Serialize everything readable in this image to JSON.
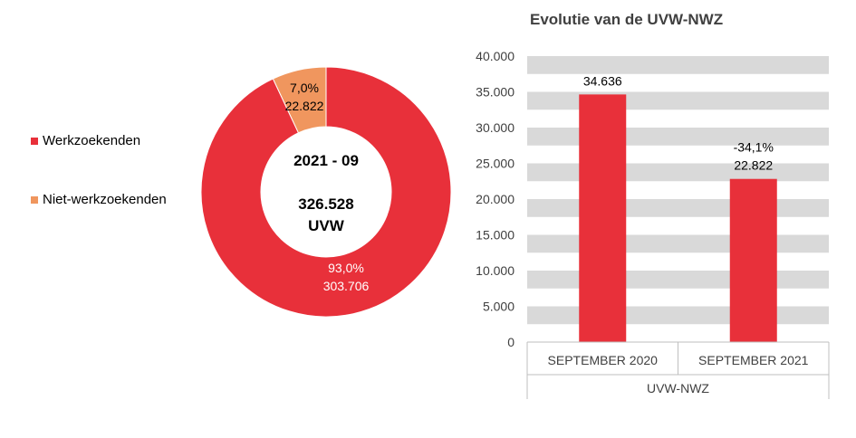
{
  "legend": [
    {
      "label": "Werkzoekenden",
      "color": "#e8303a"
    },
    {
      "label": "Niet-werkzoekenden",
      "color": "#f0965e"
    }
  ],
  "donut": {
    "center_line1": "2021 - 09",
    "center_line2": "326.528",
    "center_line3": "UVW",
    "slices": [
      {
        "name": "Werkzoekenden",
        "value": 303706,
        "percent_label": "93,0%",
        "value_label": "303.706",
        "color": "#e8303a",
        "label_color": "#ffffff"
      },
      {
        "name": "Niet-werkzoekenden",
        "value": 22822,
        "percent_label": "7,0%",
        "value_label": "22.822",
        "color": "#f0965e",
        "label_color": "#000000"
      }
    ]
  },
  "chart_data": [
    {
      "type": "pie",
      "categories": [
        "Werkzoekenden",
        "Niet-werkzoekenden"
      ],
      "values": [
        303706,
        22822
      ],
      "percent_labels": [
        "93,0%",
        "7,0%"
      ],
      "center_text": [
        "2021 - 09",
        "326.528",
        "UVW"
      ],
      "legend_position": "left"
    },
    {
      "type": "bar",
      "title": "Evolutie van de UVW-NWZ",
      "categories": [
        "SEPTEMBER 2020",
        "SEPTEMBER 2021"
      ],
      "group_label": "UVW-NWZ",
      "values": [
        34636,
        22822
      ],
      "data_labels": [
        [
          "34.636"
        ],
        [
          "-34,1%",
          "22.822"
        ]
      ],
      "ylim": [
        0,
        40000
      ],
      "yticks": [
        "0",
        "5.000",
        "10.000",
        "15.000",
        "20.000",
        "25.000",
        "30.000",
        "35.000",
        "40.000"
      ],
      "bar_color": "#e8303a",
      "grid": "alternating bands"
    }
  ]
}
